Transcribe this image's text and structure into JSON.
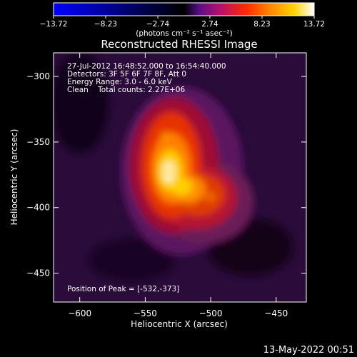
{
  "chart_data": {
    "type": "heatmap",
    "title": "Reconstructed RHESSI Image",
    "xlabel": "Heliocentric X (arcsec)",
    "ylabel": "Heliocentric Y (arcsec)",
    "xlim": [
      -620,
      -427
    ],
    "ylim": [
      -472,
      -282
    ],
    "x_ticks": [
      -600,
      -550,
      -500,
      -450
    ],
    "y_ticks": [
      -300,
      -350,
      -400,
      -450
    ],
    "colorbar": {
      "min": -13.72,
      "max": 13.72,
      "tick_labels": [
        "-13.72",
        "-8.23",
        "-2.74",
        "2.74",
        "8.23",
        "13.72"
      ],
      "unit_label": "(photons cm⁻² s⁻¹ asec⁻²)",
      "colormap": [
        "#0000ff",
        "#000000",
        "#5a0f88",
        "#b3126b",
        "#ff2a00",
        "#ff8800",
        "#ffd000",
        "#ffffff"
      ]
    },
    "info_lines": [
      "27-Jul-2012 16:48:52.000 to 16:54:40.000",
      "Detectors: 3F 5F 6F 7F 8F, Att 0",
      "Energy Range: 3.0 - 6.0 keV",
      "Clean    Total counts: 2.27E+06"
    ],
    "peak_label": "Position of Peak = [-532,-373]",
    "peak_position": [
      -532,
      -373
    ],
    "peak_value": 13.72,
    "ridge_points": [
      [
        -535,
        -345
      ],
      [
        -532,
        -373
      ],
      [
        -515,
        -388
      ],
      [
        -500,
        -392
      ]
    ]
  },
  "footer_timestamp": "13-May-2022 00:51"
}
